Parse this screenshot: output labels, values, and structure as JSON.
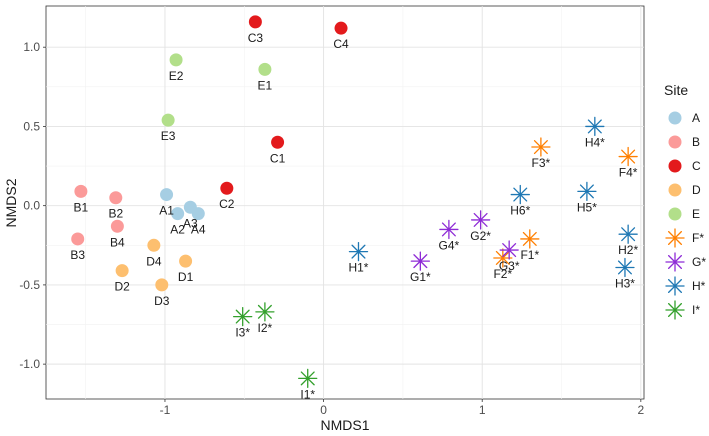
{
  "chart_data": {
    "type": "scatter",
    "title": "",
    "xlabel": "NMDS1",
    "ylabel": "NMDS2",
    "xlim": [
      -1.75,
      2.02
    ],
    "ylim": [
      -1.22,
      1.26
    ],
    "xticks": [
      -1,
      0,
      1,
      2
    ],
    "xtick_labels": [
      "-1",
      "0",
      "1",
      "2"
    ],
    "yticks": [
      -1.0,
      -0.5,
      0.0,
      0.5,
      1.0
    ],
    "ytick_labels": [
      "-1.0",
      "-0.5",
      "0.0",
      "0.5",
      "1.0"
    ],
    "grid": true,
    "legend": {
      "title": "Site",
      "placement": "right",
      "entries": [
        {
          "label": "A",
          "marker": "circle",
          "color": "#a6cee3"
        },
        {
          "label": "B",
          "marker": "circle",
          "color": "#fb9a99"
        },
        {
          "label": "C",
          "marker": "circle",
          "color": "#e31a1c"
        },
        {
          "label": "D",
          "marker": "circle",
          "color": "#fdbf6f"
        },
        {
          "label": "E",
          "marker": "circle",
          "color": "#b2df8a"
        },
        {
          "label": "F*",
          "marker": "asterisk",
          "color": "#ff7f00"
        },
        {
          "label": "G*",
          "marker": "asterisk",
          "color": "#8e2bd6"
        },
        {
          "label": "H*",
          "marker": "asterisk",
          "color": "#1f78b4"
        },
        {
          "label": "I*",
          "marker": "asterisk",
          "color": "#33a02c"
        }
      ]
    },
    "series": [
      {
        "name": "A",
        "marker": "circle",
        "color": "#a6cee3",
        "points": [
          {
            "label": "A1",
            "x": -0.99,
            "y": 0.07
          },
          {
            "label": "A2",
            "x": -0.92,
            "y": -0.05
          },
          {
            "label": "A3",
            "x": -0.84,
            "y": -0.01
          },
          {
            "label": "A4",
            "x": -0.79,
            "y": -0.05
          }
        ]
      },
      {
        "name": "B",
        "marker": "circle",
        "color": "#fb9a99",
        "points": [
          {
            "label": "B1",
            "x": -1.53,
            "y": 0.09
          },
          {
            "label": "B2",
            "x": -1.31,
            "y": 0.05
          },
          {
            "label": "B3",
            "x": -1.55,
            "y": -0.21
          },
          {
            "label": "B4",
            "x": -1.3,
            "y": -0.13
          }
        ]
      },
      {
        "name": "C",
        "marker": "circle",
        "color": "#e31a1c",
        "points": [
          {
            "label": "C1",
            "x": -0.29,
            "y": 0.4
          },
          {
            "label": "C2",
            "x": -0.61,
            "y": 0.11
          },
          {
            "label": "C3",
            "x": -0.43,
            "y": 1.16
          },
          {
            "label": "C4",
            "x": 0.11,
            "y": 1.12
          }
        ]
      },
      {
        "name": "D",
        "marker": "circle",
        "color": "#fdbf6f",
        "points": [
          {
            "label": "D1",
            "x": -0.87,
            "y": -0.35
          },
          {
            "label": "D2",
            "x": -1.27,
            "y": -0.41
          },
          {
            "label": "D3",
            "x": -1.02,
            "y": -0.5
          },
          {
            "label": "D4",
            "x": -1.07,
            "y": -0.25
          }
        ]
      },
      {
        "name": "E",
        "marker": "circle",
        "color": "#b2df8a",
        "points": [
          {
            "label": "E1",
            "x": -0.37,
            "y": 0.86
          },
          {
            "label": "E2",
            "x": -0.93,
            "y": 0.92
          },
          {
            "label": "E3",
            "x": -0.98,
            "y": 0.54
          }
        ]
      },
      {
        "name": "F*",
        "marker": "asterisk",
        "color": "#ff7f00",
        "points": [
          {
            "label": "F1*",
            "x": 1.3,
            "y": -0.21
          },
          {
            "label": "F2*",
            "x": 1.13,
            "y": -0.33
          },
          {
            "label": "F3*",
            "x": 1.37,
            "y": 0.37
          },
          {
            "label": "F4*",
            "x": 1.92,
            "y": 0.31
          }
        ]
      },
      {
        "name": "G*",
        "marker": "asterisk",
        "color": "#8e2bd6",
        "points": [
          {
            "label": "G1*",
            "x": 0.61,
            "y": -0.35
          },
          {
            "label": "G2*",
            "x": 0.99,
            "y": -0.09
          },
          {
            "label": "G3*",
            "x": 1.17,
            "y": -0.28
          },
          {
            "label": "G4*",
            "x": 0.79,
            "y": -0.15
          }
        ]
      },
      {
        "name": "H*",
        "marker": "asterisk",
        "color": "#1f78b4",
        "points": [
          {
            "label": "H1*",
            "x": 0.22,
            "y": -0.29
          },
          {
            "label": "H2*",
            "x": 1.92,
            "y": -0.18
          },
          {
            "label": "H3*",
            "x": 1.9,
            "y": -0.39
          },
          {
            "label": "H4*",
            "x": 1.71,
            "y": 0.5
          },
          {
            "label": "H5*",
            "x": 1.66,
            "y": 0.09
          },
          {
            "label": "H6*",
            "x": 1.24,
            "y": 0.07
          }
        ]
      },
      {
        "name": "I*",
        "marker": "asterisk",
        "color": "#33a02c",
        "points": [
          {
            "label": "I1*",
            "x": -0.1,
            "y": -1.09
          },
          {
            "label": "I2*",
            "x": -0.37,
            "y": -0.67
          },
          {
            "label": "I3*",
            "x": -0.51,
            "y": -0.7
          }
        ]
      }
    ]
  }
}
